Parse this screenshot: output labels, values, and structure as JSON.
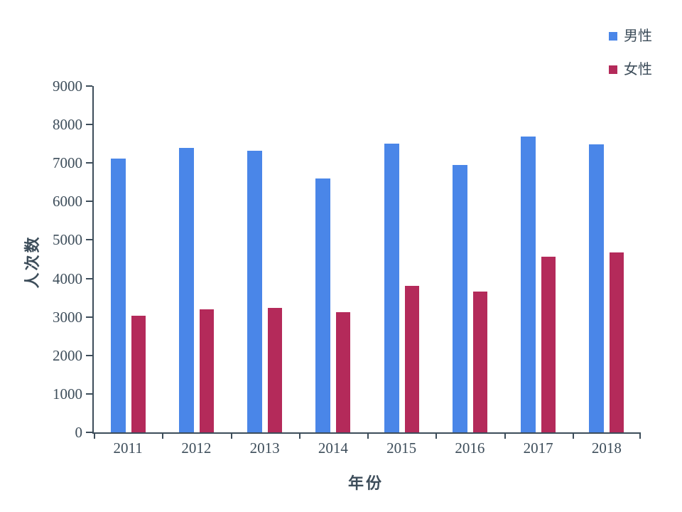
{
  "figure": {
    "background": "#ffffff",
    "text_color": "#3d4d5a",
    "axis_color": "#3d4d5a"
  },
  "chart_data": {
    "type": "bar",
    "title": "",
    "categories": [
      "2011",
      "2012",
      "2013",
      "2014",
      "2015",
      "2016",
      "2017",
      "2018"
    ],
    "series": [
      {
        "key": "male",
        "name": "男性",
        "color": "#4a86e8",
        "values": [
          7120,
          7400,
          7310,
          6600,
          7500,
          6950,
          7690,
          7490
        ]
      },
      {
        "key": "female",
        "name": "女性",
        "color": "#b42a5a",
        "values": [
          3040,
          3190,
          3230,
          3120,
          3810,
          3660,
          4560,
          4670
        ]
      }
    ],
    "xlabel": "年份",
    "ylabel": "人次数",
    "ylim": [
      0,
      9000
    ],
    "yticks": [
      0,
      1000,
      2000,
      3000,
      4000,
      5000,
      6000,
      7000,
      8000,
      9000
    ],
    "grid": false,
    "legend_position": "top-right"
  }
}
